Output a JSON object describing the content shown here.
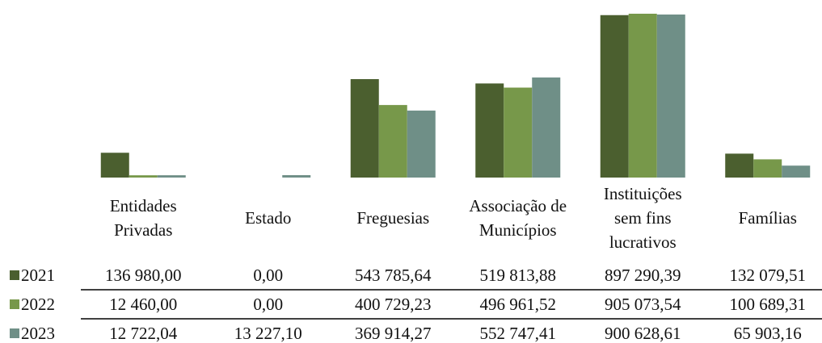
{
  "chart_data": {
    "type": "bar",
    "categories": [
      "Entidades\nPrivadas",
      "Estado",
      "Freguesias",
      "Associação de\nMunicípios",
      "Instituições\nsem fins\nlucrativos",
      "Famílias"
    ],
    "series": [
      {
        "name": "2021",
        "color": "#4b5f2f",
        "values": [
          136980.0,
          0.0,
          543785.64,
          519813.88,
          897290.39,
          132079.51
        ],
        "value_labels": [
          "136 980,00",
          "0,00",
          "543 785,64",
          "519 813,88",
          "897 290,39",
          "132 079,51"
        ]
      },
      {
        "name": "2022",
        "color": "#77984a",
        "values": [
          12460.0,
          0.0,
          400729.23,
          496961.52,
          905073.54,
          100689.31
        ],
        "value_labels": [
          "12 460,00",
          "0,00",
          "400 729,23",
          "496 961,52",
          "905 073,54",
          "100 689,31"
        ]
      },
      {
        "name": "2023",
        "color": "#6f8f87",
        "values": [
          12722.04,
          13227.1,
          369914.27,
          552747.41,
          900628.61,
          65903.16
        ],
        "value_labels": [
          "12 722,04",
          "13 227,10",
          "369 914,27",
          "552 747,41",
          "900 628,61",
          "65 903,16"
        ]
      }
    ]
  }
}
